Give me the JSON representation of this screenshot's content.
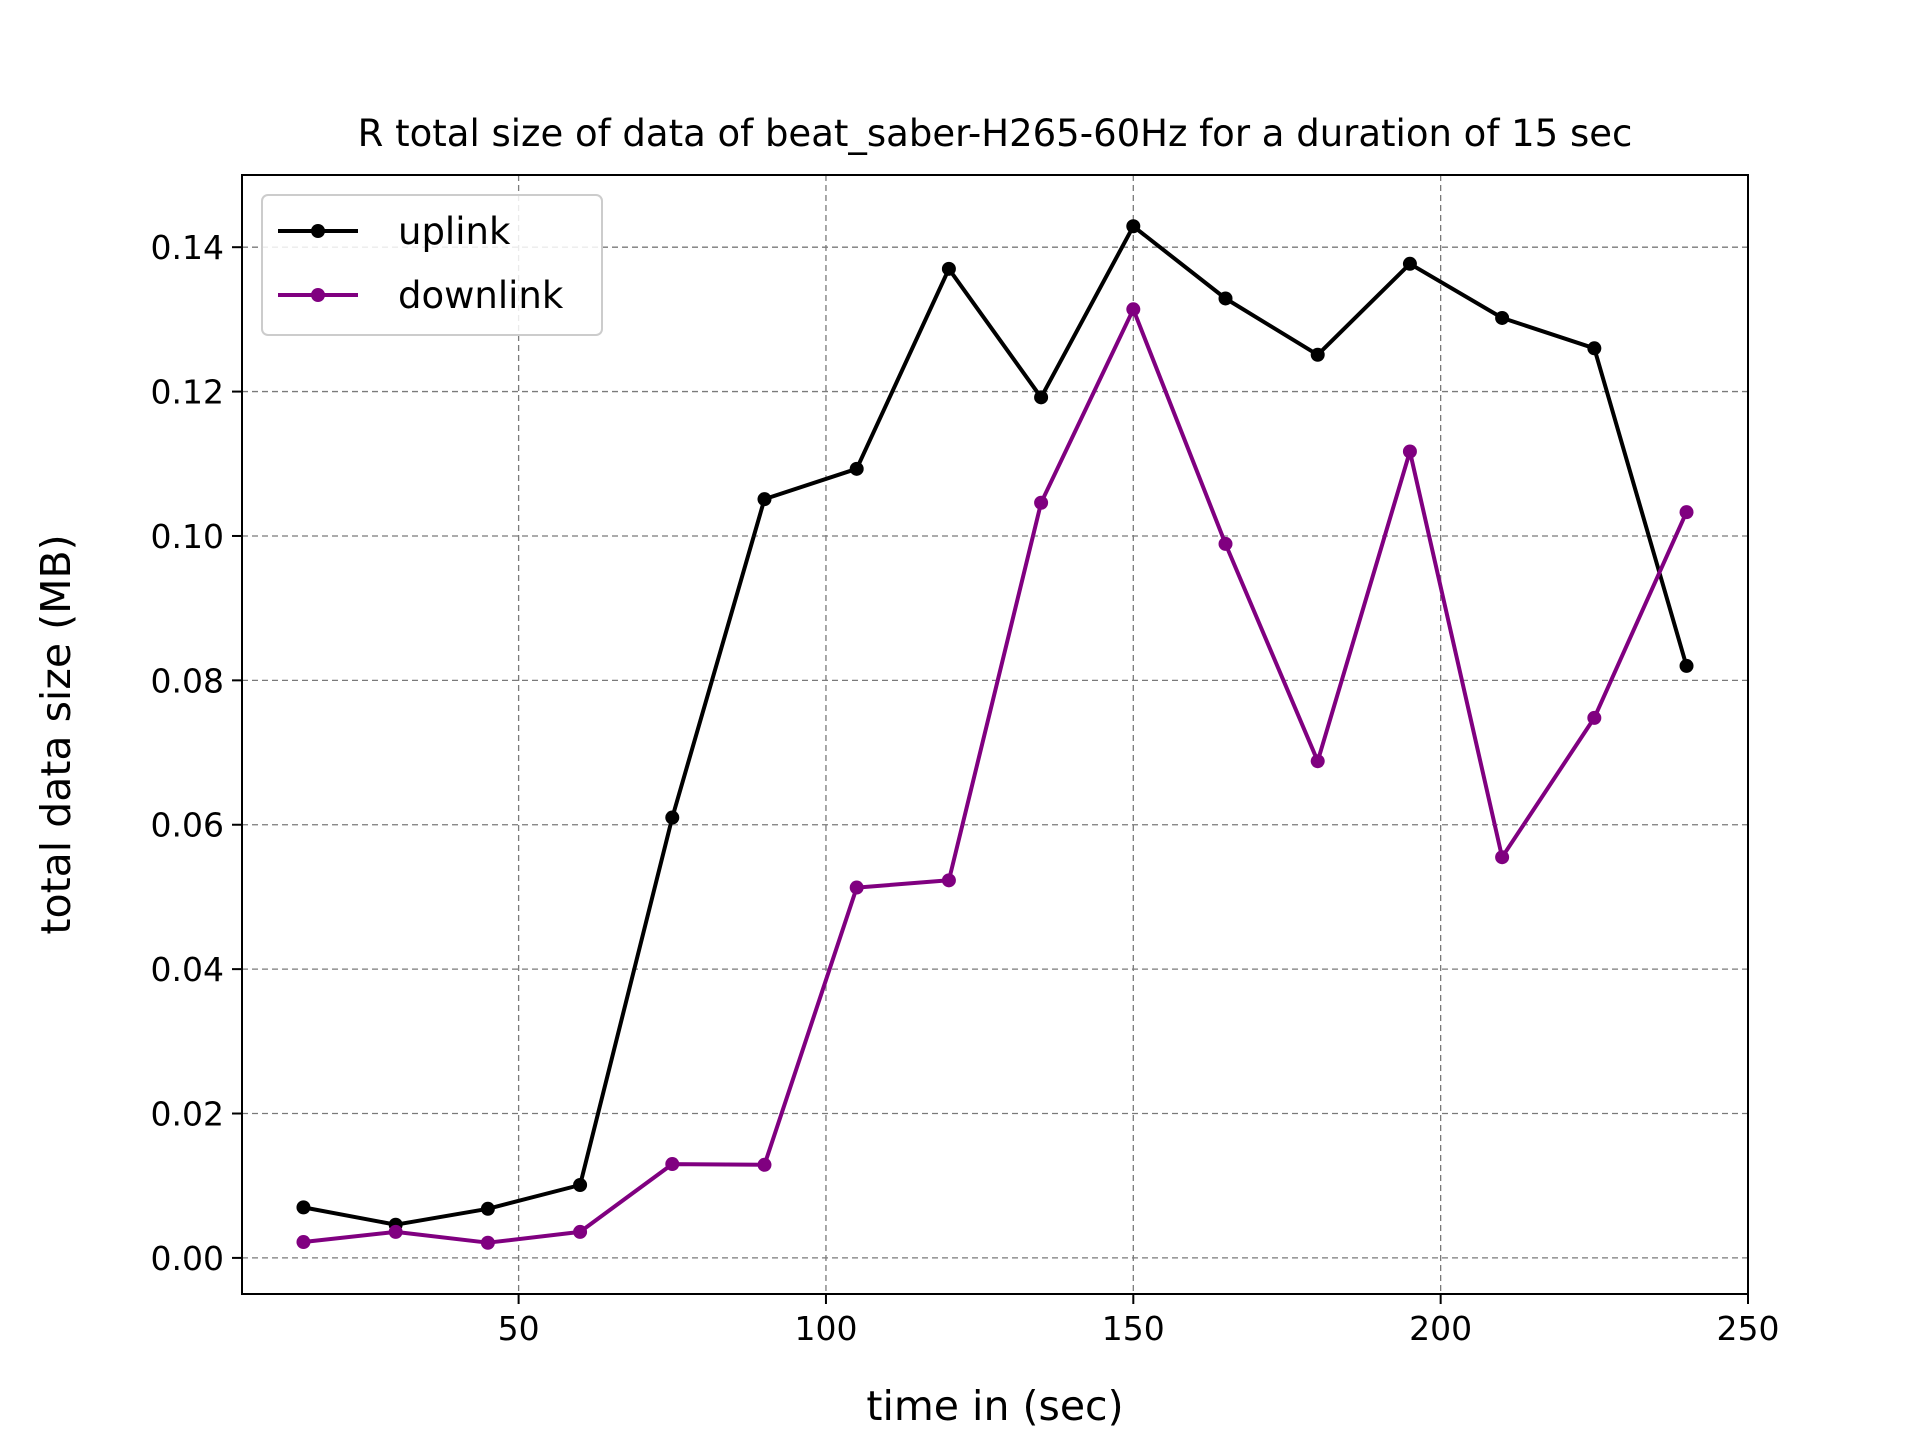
{
  "chart_data": {
    "type": "line",
    "title": "R total size of data of beat_saber-H265-60Hz for a duration of 15 sec",
    "xlabel": "time in (sec)",
    "ylabel": "total data size (MB)",
    "xlim": [
      5,
      250
    ],
    "ylim": [
      -0.005,
      0.15
    ],
    "xticks": [
      50,
      100,
      150,
      200,
      250
    ],
    "yticks": [
      0.0,
      0.02,
      0.04,
      0.06,
      0.08,
      0.1,
      0.12,
      0.14
    ],
    "xtick_labels": [
      "50",
      "100",
      "150",
      "200",
      "250"
    ],
    "ytick_labels": [
      "0.00",
      "0.02",
      "0.04",
      "0.06",
      "0.08",
      "0.10",
      "0.12",
      "0.14"
    ],
    "grid": true,
    "legend_position": "top-left",
    "x": [
      15,
      30,
      45,
      60,
      75,
      90,
      105,
      120,
      135,
      150,
      165,
      180,
      195,
      210,
      225,
      240
    ],
    "series": [
      {
        "name": "uplink",
        "color": "#000000",
        "values": [
          0.007,
          0.0046,
          0.0068,
          0.0101,
          0.061,
          0.1051,
          0.1093,
          0.137,
          0.1192,
          0.1429,
          0.1329,
          0.1251,
          0.1377,
          0.1302,
          0.126,
          0.082
        ]
      },
      {
        "name": "downlink",
        "color": "#800080",
        "values": [
          0.0022,
          0.0036,
          0.0021,
          0.0036,
          0.013,
          0.0129,
          0.0513,
          0.0523,
          0.1046,
          0.1314,
          0.0989,
          0.0688,
          0.1117,
          0.0555,
          0.0748,
          0.1033
        ]
      }
    ]
  }
}
